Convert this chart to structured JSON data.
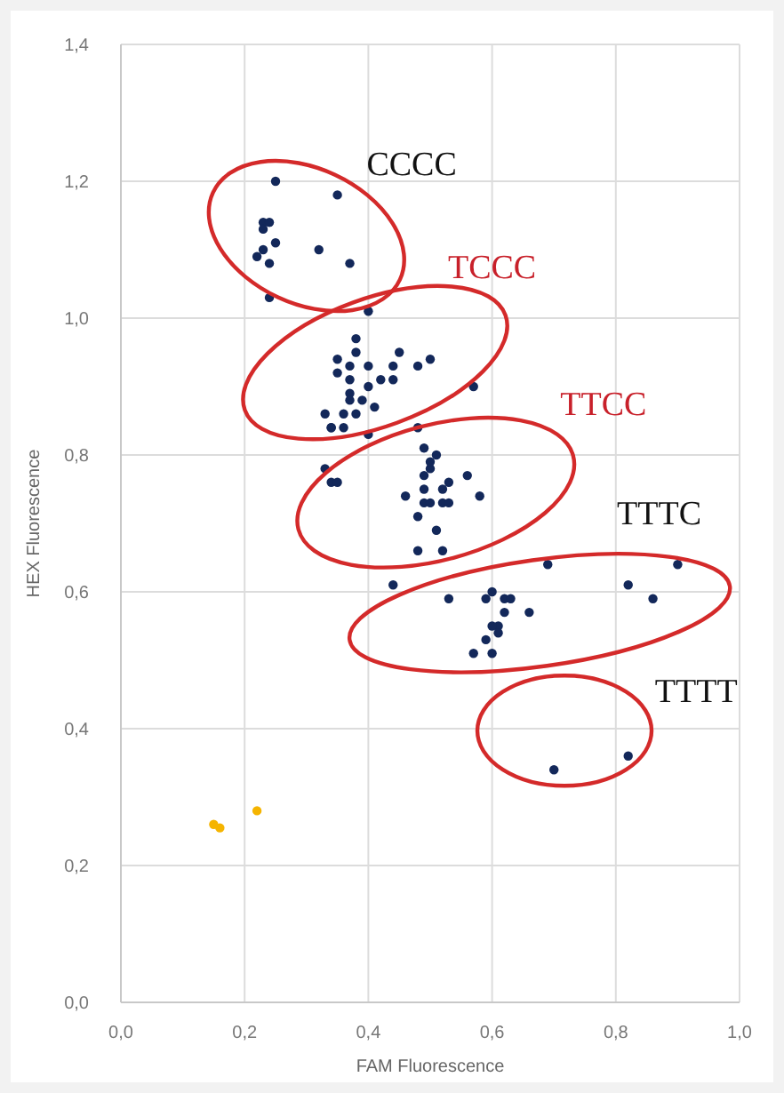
{
  "chart_data": {
    "type": "scatter",
    "xlabel": "FAM Fluorescence",
    "ylabel": "HEX Fluorescence",
    "xlim": [
      0,
      1
    ],
    "ylim": [
      0,
      1.4
    ],
    "xticks": [
      {
        "value": 0,
        "label": "0,0"
      },
      {
        "value": 0.2,
        "label": "0,2"
      },
      {
        "value": 0.4,
        "label": "0,4"
      },
      {
        "value": 0.6,
        "label": "0,6"
      },
      {
        "value": 0.8,
        "label": "0,8"
      },
      {
        "value": 1,
        "label": "1,0"
      }
    ],
    "yticks": [
      {
        "value": 0,
        "label": "0,0"
      },
      {
        "value": 0.2,
        "label": "0,2"
      },
      {
        "value": 0.4,
        "label": "0,4"
      },
      {
        "value": 0.6,
        "label": "0,6"
      },
      {
        "value": 0.8,
        "label": "0,8"
      },
      {
        "value": 1,
        "label": "1,0"
      },
      {
        "value": 1.2,
        "label": "1,2"
      },
      {
        "value": 1.4,
        "label": "1,4"
      }
    ],
    "grid": true,
    "marker": "circle",
    "series": [
      {
        "color": "#13285a",
        "x": [
          0.25,
          0.35,
          0.23,
          0.24,
          0.23,
          0.25,
          0.23,
          0.22,
          0.32,
          0.24,
          0.37,
          0.24,
          0.4,
          0.38,
          0.45,
          0.5,
          0.48,
          0.44,
          0.35,
          0.38,
          0.35,
          0.37,
          0.4,
          0.42,
          0.44,
          0.37,
          0.4,
          0.37,
          0.57,
          0.39,
          0.41,
          0.37,
          0.38,
          0.33,
          0.36,
          0.34,
          0.36,
          0.34,
          0.4,
          0.48,
          0.49,
          0.51,
          0.5,
          0.5,
          0.49,
          0.56,
          0.33,
          0.34,
          0.35,
          0.53,
          0.49,
          0.52,
          0.46,
          0.49,
          0.5,
          0.52,
          0.53,
          0.58,
          0.48,
          0.51,
          0.48,
          0.52,
          0.44,
          0.69,
          0.9,
          0.82,
          0.86,
          0.53,
          0.6,
          0.59,
          0.62,
          0.63,
          0.66,
          0.62,
          0.61,
          0.6,
          0.61,
          0.59,
          0.57,
          0.6,
          0.7,
          0.82
        ],
        "values": [
          1.2,
          1.18,
          1.14,
          1.14,
          1.13,
          1.11,
          1.1,
          1.09,
          1.1,
          1.08,
          1.08,
          1.03,
          1.01,
          0.97,
          0.95,
          0.94,
          0.93,
          0.93,
          0.94,
          0.95,
          0.92,
          0.93,
          0.93,
          0.91,
          0.91,
          0.91,
          0.9,
          0.89,
          0.9,
          0.88,
          0.87,
          0.88,
          0.86,
          0.86,
          0.86,
          0.84,
          0.84,
          0.84,
          0.83,
          0.84,
          0.81,
          0.8,
          0.78,
          0.79,
          0.77,
          0.77,
          0.78,
          0.76,
          0.76,
          0.76,
          0.75,
          0.75,
          0.74,
          0.73,
          0.73,
          0.73,
          0.73,
          0.74,
          0.71,
          0.69,
          0.66,
          0.66,
          0.61,
          0.64,
          0.64,
          0.61,
          0.59,
          0.59,
          0.6,
          0.59,
          0.59,
          0.59,
          0.57,
          0.57,
          0.55,
          0.55,
          0.54,
          0.53,
          0.51,
          0.51,
          0.34,
          0.36
        ]
      },
      {
        "color": "#f5b400",
        "x": [
          0.15,
          0.16,
          0.22
        ],
        "values": [
          0.26,
          0.255,
          0.28
        ]
      }
    ],
    "annotations": [
      "CCCC",
      "TCCC",
      "TTCC",
      "TTTC",
      "TTTT"
    ]
  }
}
